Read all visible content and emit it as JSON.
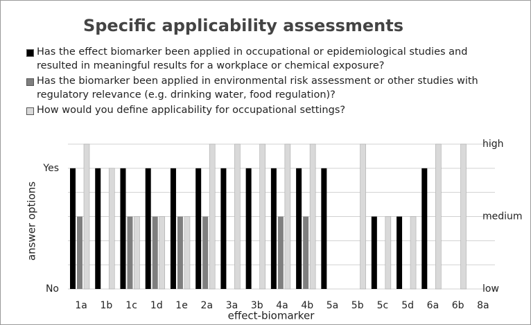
{
  "chart_data": {
    "type": "bar",
    "title": "Specific applicability assessments",
    "x_label": "effect-biomarker",
    "y_label": "answer options",
    "categories": [
      "1a",
      "1b",
      "1c",
      "1d",
      "1e",
      "2a",
      "3a",
      "3b",
      "4a",
      "4b",
      "5a",
      "5b",
      "5c",
      "5d",
      "6a",
      "6b",
      "8a"
    ],
    "series": [
      {
        "name": "Has the effect biomarker been applied in occupational or epidemiological studies and resulted in meaningful results for a workplace or chemical exposure?",
        "color": "#000000",
        "values": [
          5,
          5,
          5,
          5,
          5,
          5,
          5,
          5,
          5,
          5,
          5,
          0,
          3,
          3,
          5,
          0,
          0
        ]
      },
      {
        "name": "Has the biomarker been applied in environmental risk assessment or other studies with regulatory relevance (e.g. drinking water, food regulation)?",
        "color": "#7f7f7f",
        "values": [
          3,
          0,
          3,
          3,
          3,
          3,
          0,
          0,
          3,
          3,
          0,
          0,
          0,
          0,
          0,
          0,
          0
        ]
      },
      {
        "name": "How would you define applicability for occupational settings?",
        "color": "#d9d9d9",
        "values": [
          6,
          5,
          3,
          3,
          3,
          6,
          6,
          6,
          6,
          6,
          0,
          6,
          3,
          3,
          6,
          6,
          0
        ]
      }
    ],
    "ylim": [
      0,
      6
    ],
    "yticks": [
      {
        "value": 0,
        "label": "No"
      },
      {
        "value": 5,
        "label": "Yes"
      }
    ],
    "y2lim": [
      0,
      6
    ],
    "y2ticks": [
      {
        "value": 0,
        "label": "low"
      },
      {
        "value": 3,
        "label": "medium"
      },
      {
        "value": 6,
        "label": "high"
      }
    ],
    "grid": true
  }
}
